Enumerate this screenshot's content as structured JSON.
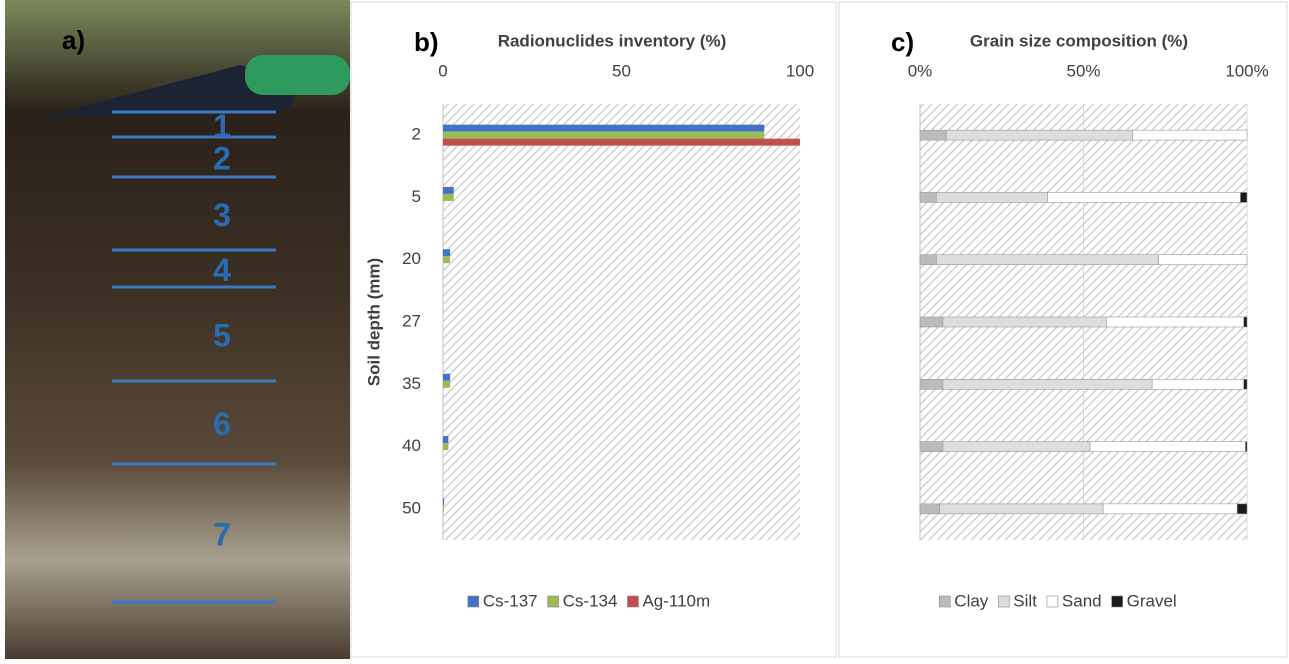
{
  "photo": {
    "label": "a)",
    "layers": [
      "1",
      "2",
      "3",
      "4",
      "5",
      "6",
      "7"
    ]
  },
  "chart_data": [
    {
      "type": "bar",
      "orientation": "horizontal",
      "label": "b)",
      "title": "Radionuclides inventory (%)",
      "ylabel": "Soil depth (mm)",
      "categories": [
        "2",
        "5",
        "20",
        "27",
        "35",
        "40",
        "50"
      ],
      "series": [
        {
          "name": "Cs-137",
          "color": "#4472c4",
          "values": [
            90,
            3,
            2,
            0,
            2,
            1.5,
            0.3
          ]
        },
        {
          "name": "Cs-134",
          "color": "#9bbb59",
          "values": [
            90,
            3,
            2,
            0,
            2,
            1.5,
            0.3
          ]
        },
        {
          "name": "Ag-110m",
          "color": "#c0504d",
          "values": [
            100,
            0,
            0,
            0,
            0,
            0,
            0
          ]
        }
      ],
      "xlim": [
        0,
        100
      ],
      "xticks": [
        0,
        50,
        100
      ],
      "grid": false,
      "legend": "bottom"
    },
    {
      "type": "stacked_bar",
      "orientation": "horizontal",
      "label": "c)",
      "title": "Grain size composition (%)",
      "categories": [
        null,
        null,
        null,
        null,
        null,
        null,
        null
      ],
      "series": [
        {
          "name": "Clay",
          "color": "#bbbbbb",
          "values": [
            8,
            5,
            5,
            7,
            7,
            7,
            6
          ]
        },
        {
          "name": "Silt",
          "color": "#dddddd",
          "values": [
            57,
            34,
            68,
            50,
            64,
            45,
            50
          ]
        },
        {
          "name": "Sand",
          "color": "#ffffff",
          "values": [
            35,
            59,
            27,
            42,
            28,
            47.5,
            41
          ]
        },
        {
          "name": "Gravel",
          "color": "#1a1a1a",
          "values": [
            0,
            2,
            0,
            1,
            1,
            0.5,
            3
          ]
        }
      ],
      "xlim": [
        0,
        100
      ],
      "xticks": [
        {
          "value": 0,
          "label": "0%"
        },
        {
          "value": 50,
          "label": "50%"
        },
        {
          "value": 100,
          "label": "100%"
        }
      ],
      "grid": true,
      "legend": "bottom"
    }
  ]
}
